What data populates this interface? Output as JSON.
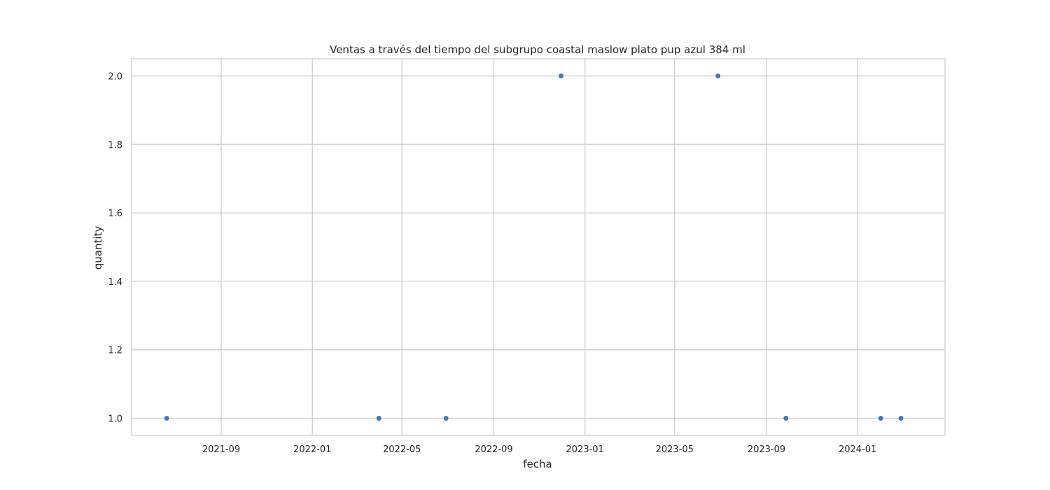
{
  "chart_data": {
    "type": "scatter",
    "title": "Ventas a través del tiempo del subgrupo coastal maslow  plato pup azul 384 ml",
    "xlabel": "fecha",
    "ylabel": "quantity",
    "grid": true,
    "marker_color": "#4c72b0",
    "x_ticks": [
      "2021-09",
      "2022-01",
      "2022-05",
      "2022-09",
      "2023-01",
      "2023-05",
      "2023-09",
      "2024-01"
    ],
    "y_ticks": [
      "1.0",
      "1.2",
      "1.4",
      "1.6",
      "1.8",
      "2.0"
    ],
    "xlim": [
      "2021-05-04",
      "2024-04-27"
    ],
    "ylim": [
      0.95,
      2.05
    ],
    "points": [
      {
        "x": "2021-06-20",
        "y": 1
      },
      {
        "x": "2022-03-31",
        "y": 1
      },
      {
        "x": "2022-06-29",
        "y": 1
      },
      {
        "x": "2022-11-30",
        "y": 2
      },
      {
        "x": "2023-06-28",
        "y": 2
      },
      {
        "x": "2023-09-27",
        "y": 1
      },
      {
        "x": "2024-02-01",
        "y": 1
      },
      {
        "x": "2024-02-28",
        "y": 1
      }
    ]
  }
}
